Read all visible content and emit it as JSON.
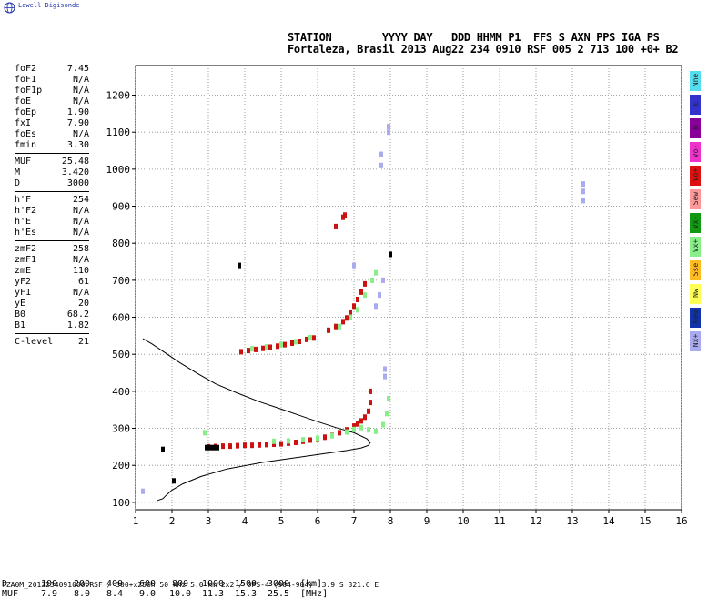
{
  "logo_text": "Lowell Digisonde",
  "header": {
    "line1": "STATION        YYYY DAY   DDD HHMM P1  FFS S AXN PPS IGA PS",
    "line2": "Fortaleza, Brasil 2013 Aug22 234 0910 RSF 005 2 713 100 +0+ B2"
  },
  "params": [
    [
      [
        "foF2",
        "7.45"
      ],
      [
        "foF1",
        "N/A"
      ],
      [
        "foF1p",
        "N/A"
      ],
      [
        "foE",
        "N/A"
      ],
      [
        "foEp",
        "1.90"
      ],
      [
        "fxI",
        "7.90"
      ],
      [
        "foEs",
        "N/A"
      ],
      [
        "fmin",
        "3.30"
      ]
    ],
    [
      [
        "MUF",
        "25.48"
      ],
      [
        "M",
        "3.420"
      ],
      [
        "D",
        "3000"
      ]
    ],
    [
      [
        "h'F",
        "254"
      ],
      [
        "h'F2",
        "N/A"
      ],
      [
        "h'E",
        "N/A"
      ],
      [
        "h'Es",
        "N/A"
      ]
    ],
    [
      [
        "zmF2",
        "258"
      ],
      [
        "zmF1",
        "N/A"
      ],
      [
        "zmE",
        "110"
      ],
      [
        "yF2",
        "61"
      ],
      [
        "yF1",
        "N/A"
      ],
      [
        "yE",
        "20"
      ],
      [
        "B0",
        "68.2"
      ],
      [
        "B1",
        "1.82"
      ]
    ],
    [
      [
        "C-level",
        "21"
      ]
    ]
  ],
  "legend": [
    {
      "label": "Nne",
      "color": "#55ddee"
    },
    {
      "label": "E",
      "color": "#3333cc"
    },
    {
      "label": "W",
      "color": "#880099"
    },
    {
      "label": "Vo-",
      "color": "#ee33cc"
    },
    {
      "label": "Vo+",
      "color": "#dd1111"
    },
    {
      "label": "Sew",
      "color": "#ff9999"
    },
    {
      "label": "Vx-",
      "color": "#119911"
    },
    {
      "label": "Vx+",
      "color": "#88ee88"
    },
    {
      "label": "Sse",
      "color": "#ffbb22"
    },
    {
      "label": "Nw",
      "color": "#ffff55"
    },
    {
      "label": "New",
      "color": "#1133aa"
    },
    {
      "label": "Nx+",
      "color": "#aaaaee"
    }
  ],
  "footer": {
    "d_label": "D",
    "d_values": [
      "100",
      "200",
      "400",
      "600",
      "800",
      "1000",
      "1500",
      "3000"
    ],
    "d_unit": "[km]",
    "muf_label": "MUF",
    "muf_values": [
      "7.9",
      "8.0",
      "8.4",
      "9.0",
      "10.0",
      "11.3",
      "15.3",
      "25.5"
    ],
    "muf_unit": "[MHz]",
    "file_line": "FZA0M_2013234091000.RSF / 300+x256h 50 kHz 5.0 km 2x2 / DPS-4 (904-904)  3.9 S 321.6 E"
  },
  "chart_data": {
    "type": "scatter",
    "xlim": [
      1,
      16
    ],
    "ylim": [
      80,
      1280
    ],
    "xticks": [
      "1",
      "2",
      "3",
      "4",
      "5",
      "6",
      "7",
      "8",
      "9",
      "10",
      "11",
      "12",
      "13",
      "14",
      "15",
      "16"
    ],
    "yticks": [
      "100",
      "200",
      "300",
      "400",
      "500",
      "600",
      "700",
      "800",
      "900",
      "1000",
      "1100",
      "1200"
    ],
    "grid": true,
    "series": [
      {
        "color": "#cc1111",
        "points": [
          [
            3.0,
            250
          ],
          [
            3.2,
            251
          ],
          [
            3.4,
            252
          ],
          [
            3.6,
            252
          ],
          [
            3.8,
            253
          ],
          [
            4.0,
            254
          ],
          [
            4.2,
            254
          ],
          [
            4.4,
            255
          ],
          [
            4.6,
            256
          ],
          [
            4.8,
            257
          ],
          [
            5.0,
            258
          ],
          [
            5.2,
            260
          ],
          [
            5.4,
            262
          ],
          [
            5.6,
            265
          ],
          [
            5.8,
            268
          ],
          [
            6.0,
            272
          ],
          [
            6.2,
            276
          ],
          [
            6.4,
            281
          ],
          [
            6.6,
            288
          ],
          [
            6.8,
            296
          ],
          [
            7.0,
            306
          ],
          [
            7.1,
            312
          ],
          [
            7.2,
            320
          ],
          [
            7.3,
            330
          ],
          [
            7.4,
            346
          ],
          [
            7.45,
            370
          ],
          [
            7.45,
            400
          ],
          [
            3.9,
            507
          ],
          [
            4.1,
            510
          ],
          [
            4.3,
            513
          ],
          [
            4.5,
            516
          ],
          [
            4.7,
            519
          ],
          [
            4.9,
            522
          ],
          [
            5.1,
            526
          ],
          [
            5.3,
            530
          ],
          [
            5.5,
            535
          ],
          [
            5.7,
            540
          ],
          [
            5.9,
            544
          ],
          [
            6.3,
            565
          ],
          [
            6.5,
            575
          ],
          [
            6.7,
            588
          ],
          [
            6.8,
            598
          ],
          [
            6.9,
            612
          ],
          [
            7.0,
            630
          ],
          [
            7.1,
            648
          ],
          [
            7.2,
            668
          ],
          [
            7.3,
            690
          ],
          [
            6.5,
            845
          ],
          [
            6.7,
            870
          ],
          [
            6.75,
            876
          ]
        ]
      },
      {
        "color": "#88ee88",
        "points": [
          [
            4.8,
            265
          ],
          [
            5.2,
            266
          ],
          [
            5.6,
            269
          ],
          [
            6.0,
            273
          ],
          [
            6.4,
            280
          ],
          [
            6.8,
            290
          ],
          [
            7.0,
            297
          ],
          [
            7.2,
            302
          ],
          [
            7.4,
            296
          ],
          [
            7.6,
            292
          ],
          [
            7.8,
            310
          ],
          [
            7.9,
            340
          ],
          [
            7.95,
            380
          ],
          [
            4.2,
            515
          ],
          [
            4.6,
            520
          ],
          [
            5.0,
            526
          ],
          [
            5.4,
            534
          ],
          [
            5.8,
            545
          ],
          [
            6.6,
            575
          ],
          [
            6.9,
            600
          ],
          [
            7.1,
            620
          ],
          [
            7.3,
            660
          ],
          [
            7.5,
            700
          ],
          [
            7.6,
            720
          ],
          [
            2.9,
            288
          ]
        ]
      },
      {
        "color": "#aaaaee",
        "points": [
          [
            7.85,
            440
          ],
          [
            7.85,
            460
          ],
          [
            7.6,
            630
          ],
          [
            7.7,
            660
          ],
          [
            7.8,
            700
          ],
          [
            7.75,
            1010
          ],
          [
            7.75,
            1040
          ],
          [
            7.95,
            1100
          ],
          [
            7.95,
            1115
          ],
          [
            13.3,
            915
          ],
          [
            13.3,
            940
          ],
          [
            13.3,
            960
          ],
          [
            7.0,
            740
          ],
          [
            1.2,
            130
          ]
        ]
      },
      {
        "color": "#000000",
        "points": [
          [
            2.95,
            248
          ],
          [
            3.05,
            248
          ],
          [
            3.15,
            248
          ],
          [
            3.25,
            248
          ],
          [
            1.75,
            243
          ],
          [
            2.05,
            158
          ],
          [
            3.85,
            740
          ],
          [
            8.0,
            770
          ]
        ]
      }
    ],
    "profile": {
      "color": "#000000",
      "points": [
        [
          1.6,
          105
        ],
        [
          1.75,
          110
        ],
        [
          1.85,
          120
        ],
        [
          2.0,
          133
        ],
        [
          2.3,
          150
        ],
        [
          2.8,
          170
        ],
        [
          3.5,
          190
        ],
        [
          4.5,
          208
        ],
        [
          5.5,
          222
        ],
        [
          6.2,
          232
        ],
        [
          6.8,
          240
        ],
        [
          7.2,
          247
        ],
        [
          7.4,
          254
        ],
        [
          7.45,
          262
        ],
        [
          7.35,
          272
        ],
        [
          7.0,
          288
        ],
        [
          6.5,
          302
        ],
        [
          6.0,
          318
        ],
        [
          5.5,
          335
        ],
        [
          5.0,
          352
        ],
        [
          4.4,
          372
        ],
        [
          3.8,
          395
        ],
        [
          3.2,
          420
        ],
        [
          2.7,
          448
        ],
        [
          2.2,
          478
        ],
        [
          1.8,
          505
        ],
        [
          1.45,
          528
        ],
        [
          1.2,
          542
        ]
      ]
    }
  }
}
